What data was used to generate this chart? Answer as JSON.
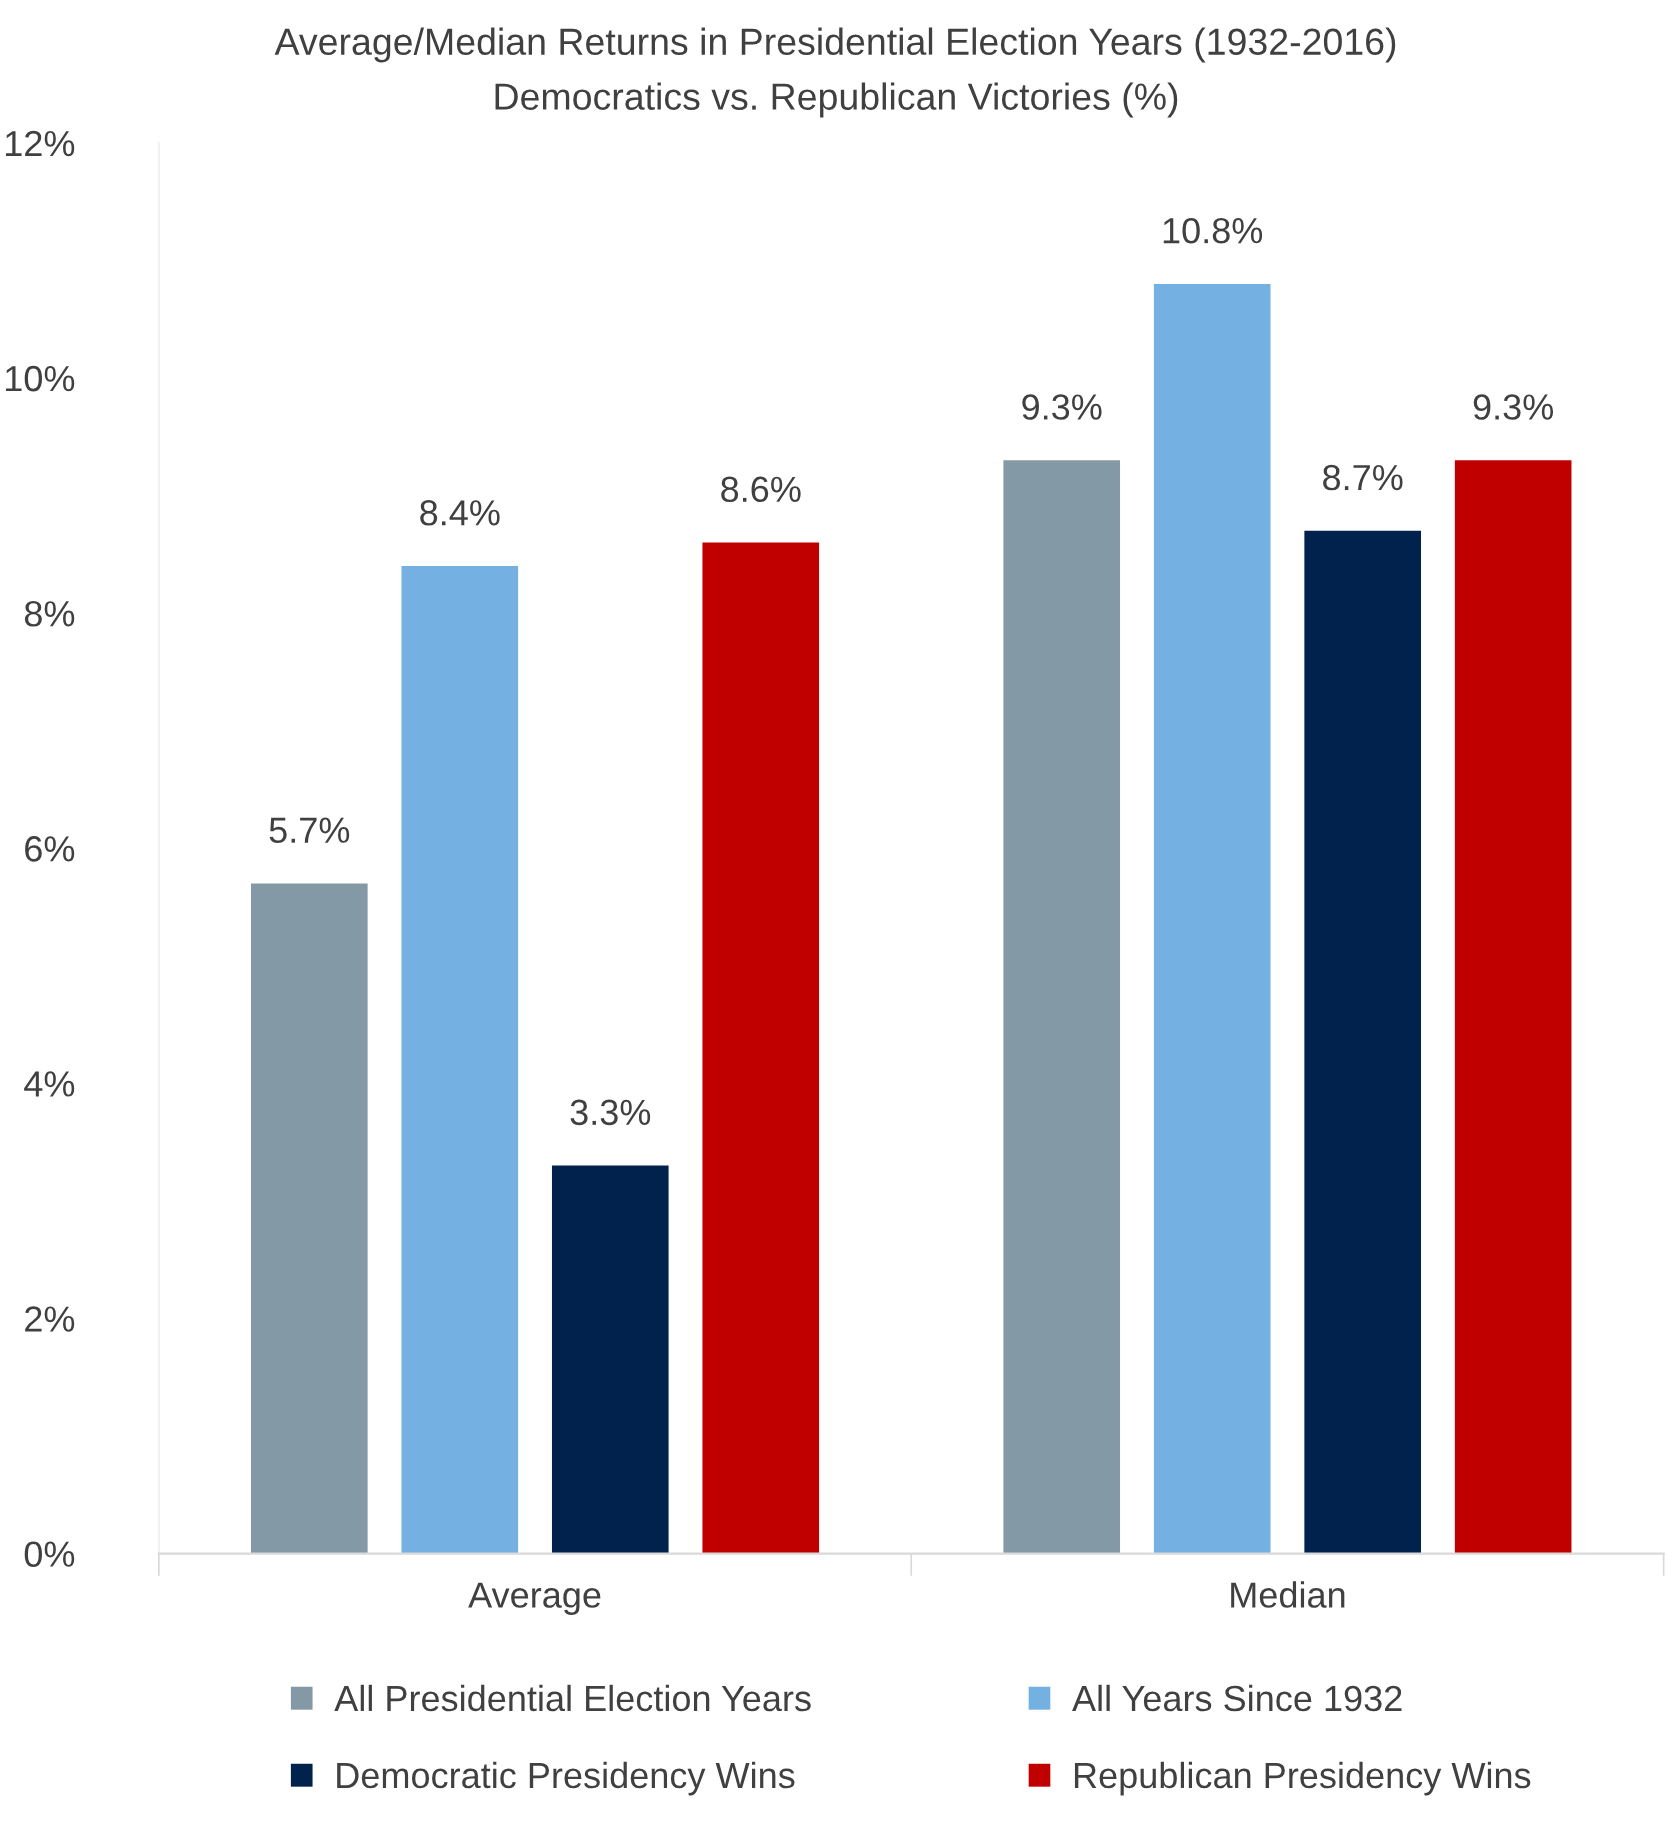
{
  "chart_data": {
    "type": "bar",
    "title": "Average/Median Returns in Presidential Election Years (1932-2016)",
    "subtitle": "Democratics vs. Republican Victories (%)",
    "categories": [
      "Average",
      "Median"
    ],
    "series": [
      {
        "name": "All Presidential Election Years",
        "color": "#8499a6",
        "values": [
          5.7,
          9.3
        ],
        "value_labels": [
          "5.7%",
          "9.3%"
        ]
      },
      {
        "name": "All Years Since 1932",
        "color": "#74b0e2",
        "values": [
          8.4,
          10.8
        ],
        "value_labels": [
          "8.4%",
          "10.8%"
        ]
      },
      {
        "name": "Democratic Presidency Wins",
        "color": "#00224d",
        "values": [
          3.3,
          8.7
        ],
        "value_labels": [
          "3.3%",
          "8.7%"
        ]
      },
      {
        "name": "Republican Presidency Wins",
        "color": "#c00000",
        "values": [
          8.6,
          9.3
        ],
        "value_labels": [
          "8.6%",
          "9.3%"
        ]
      }
    ],
    "ylim": [
      0,
      12
    ],
    "yticks": [
      {
        "value": 0,
        "label": "0%"
      },
      {
        "value": 2,
        "label": "2%"
      },
      {
        "value": 4,
        "label": "4%"
      },
      {
        "value": 6,
        "label": "6%"
      },
      {
        "value": 8,
        "label": "8%"
      },
      {
        "value": 10,
        "label": "10%"
      },
      {
        "value": 12,
        "label": "12%"
      }
    ],
    "grid": false,
    "legend": "bottom"
  }
}
